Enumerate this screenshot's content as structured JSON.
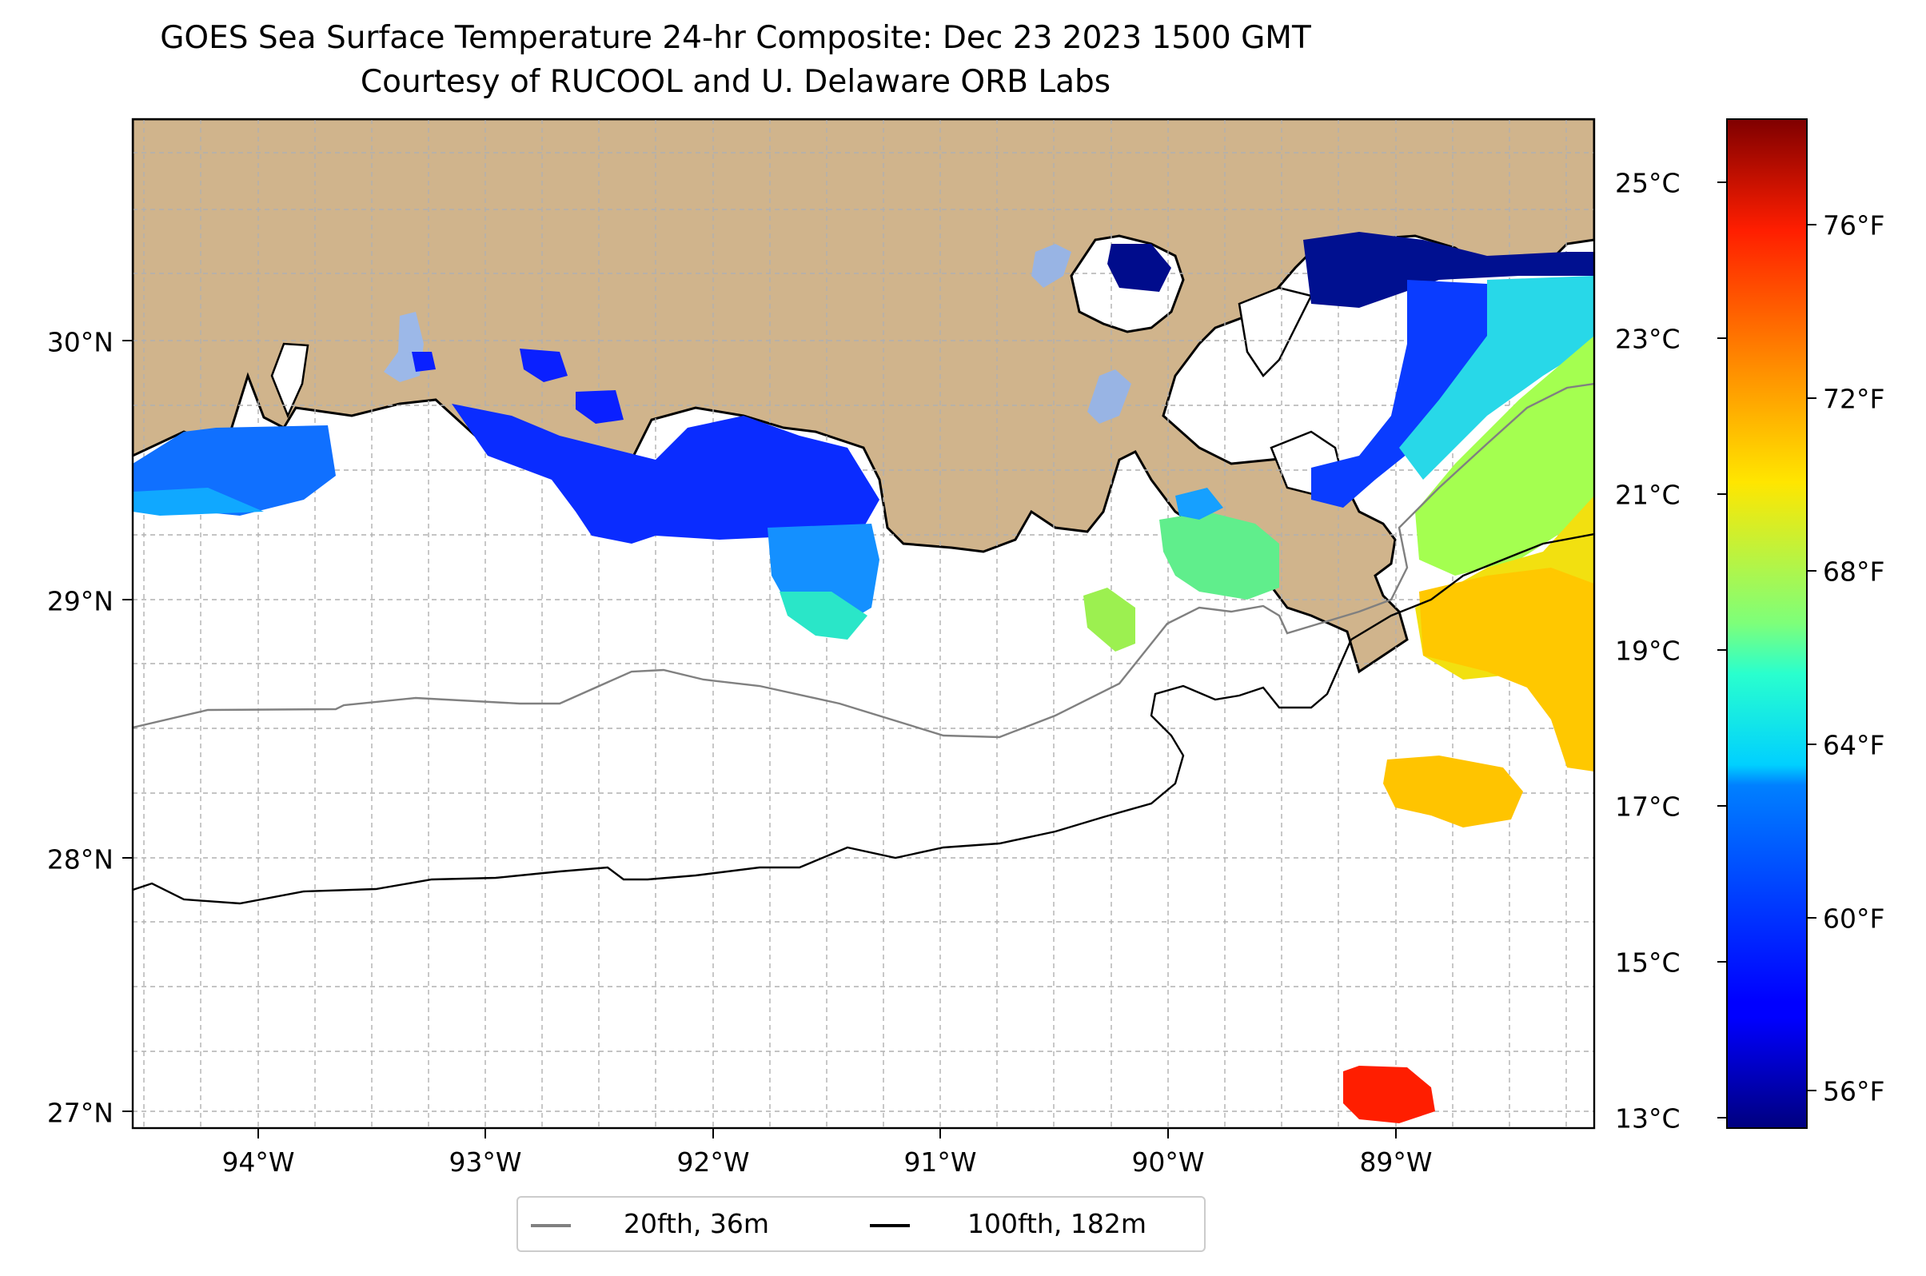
{
  "title": "GOES Sea Surface Temperature 24-hr Composite: Dec 23 2023 1500 GMT",
  "subtitle": "Courtesy of RUCOOL and U. Delaware ORB Labs",
  "map": {
    "lon_range": [
      -94.55,
      -88.2
    ],
    "lat_range": [
      26.93,
      30.85
    ],
    "longitude_labels": [
      "94°W",
      "93°W",
      "92°W",
      "91°W",
      "90°W",
      "89°W"
    ],
    "latitude_labels": [
      "30°N",
      "29°N",
      "28°N",
      "27°N"
    ],
    "land_color": "#d0b48c",
    "grid": true
  },
  "colorbar": {
    "celsius_labels": [
      "25°C",
      "23°C",
      "21°C",
      "19°C",
      "17°C",
      "15°C",
      "13°C"
    ],
    "fahrenheit_labels": [
      "76°F",
      "72°F",
      "68°F",
      "64°F",
      "60°F",
      "56°F"
    ],
    "colormap": "jet",
    "range_celsius": [
      12.9,
      25.8
    ]
  },
  "legend": {
    "items": [
      {
        "label": "20fth, 36m",
        "color": "#808080"
      },
      {
        "label": "100fth, 182m",
        "color": "#000000"
      }
    ]
  }
}
